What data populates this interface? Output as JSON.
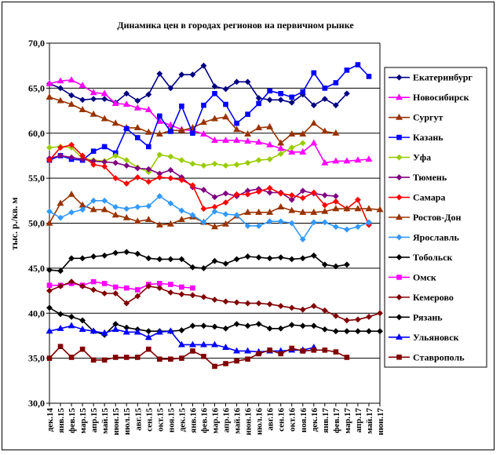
{
  "chart_data": {
    "type": "line",
    "title": "Динамика цен в городах регионов на первичном рынке",
    "ylabel": "тыс. р./кв. м",
    "xlabel": "",
    "ylim": [
      30,
      70
    ],
    "yticks": [
      "30,0",
      "35,0",
      "40,0",
      "45,0",
      "50,0",
      "55,0",
      "60,0",
      "65,0",
      "70,0"
    ],
    "grid": "horizontal",
    "legend": "right",
    "categories": [
      "дек.14",
      "янв.15",
      "фев.15",
      "мар.15",
      "апр.15",
      "май.15",
      "июн.15",
      "июл.15",
      "авг.15",
      "сен.15",
      "окт.15",
      "ноя.15",
      "дек.15",
      "янв.16",
      "фев.16",
      "мар.16",
      "апр.16",
      "май.16",
      "июн.16",
      "июл.16",
      "авг.16",
      "сен.16",
      "окт.16",
      "ноя.16",
      "дек.16",
      "янв.17",
      "фев.17",
      "мар.17",
      "апр.17",
      "май.17",
      "июн.17"
    ],
    "xticks_shown": [
      "дек.14",
      "янв.15",
      "фев.15",
      "мар.15",
      "апр.15",
      "май.15",
      "июн.15",
      "июл.15",
      "авг.15",
      "сен.15",
      "окт.15",
      "ноя.15",
      "дек.15",
      "янв.16",
      "фев.16",
      "мар.16",
      "апр.16",
      "май.16",
      "июн.16",
      "июл.16",
      "авг.16",
      "сен.16",
      "окт.16",
      "ноя.16",
      "дек.16",
      "янв.17",
      "фев.17",
      "мар.17",
      "апр.17",
      "май.17",
      "июн.17"
    ],
    "series": [
      {
        "name": "Екатеринбург",
        "color": "#000080",
        "marker": "diamond",
        "values": [
          65.5,
          65.0,
          64.2,
          63.7,
          63.8,
          63.8,
          63.4,
          64.4,
          63.6,
          64.3,
          66.6,
          65.0,
          66.5,
          66.5,
          67.5,
          65.2,
          64.9,
          65.7,
          65.7,
          63.9,
          63.7,
          63.7,
          63.4,
          64.3,
          63.1,
          63.8,
          63.1,
          64.4,
          null,
          null,
          null
        ]
      },
      {
        "name": "Новосибирск",
        "color": "#FF00FF",
        "marker": "triangle",
        "values": [
          65.5,
          65.8,
          65.9,
          65.3,
          64.5,
          64.4,
          63.3,
          63.2,
          62.8,
          62.6,
          61.3,
          60.9,
          60.4,
          60.3,
          59.9,
          59.2,
          59.2,
          59.2,
          59.1,
          59.0,
          58.7,
          58.3,
          57.9,
          57.9,
          58.9,
          56.7,
          56.9,
          56.9,
          57.0,
          57.1,
          null
        ]
      },
      {
        "name": "Сургут",
        "color": "#993300",
        "marker": "triangle",
        "values": [
          64.0,
          63.6,
          63.2,
          62.6,
          62.1,
          61.6,
          61.1,
          60.6,
          60.6,
          60.1,
          59.9,
          60.3,
          60.3,
          60.6,
          61.2,
          61.6,
          61.8,
          60.4,
          59.9,
          60.6,
          60.7,
          58.9,
          59.9,
          59.9,
          61.1,
          60.2,
          60.0,
          null,
          null,
          null,
          null
        ]
      },
      {
        "name": "Казань",
        "color": "#0000FF",
        "marker": "square",
        "values": [
          57.0,
          57.5,
          57.1,
          57.0,
          58.0,
          58.5,
          57.8,
          60.5,
          59.5,
          58.5,
          61.9,
          60.2,
          63.0,
          60.0,
          63.1,
          64.4,
          63.2,
          61.1,
          62.1,
          63.3,
          64.7,
          64.4,
          64.0,
          64.6,
          66.7,
          65.0,
          65.6,
          67.0,
          67.6,
          66.3,
          null
        ]
      },
      {
        "name": "Уфа",
        "color": "#99CC00",
        "marker": "diamond",
        "values": [
          58.4,
          58.5,
          58.4,
          57.2,
          57.0,
          56.9,
          57.5,
          57.0,
          56.2,
          55.7,
          57.6,
          57.4,
          57.0,
          56.6,
          56.4,
          56.6,
          56.4,
          56.5,
          56.7,
          57.0,
          57.1,
          57.7,
          58.4,
          58.9,
          null,
          null,
          null,
          null,
          null,
          null,
          null
        ]
      },
      {
        "name": "Тюмень",
        "color": "#800080",
        "marker": "diamond",
        "values": [
          57.2,
          57.5,
          57.3,
          57.1,
          56.9,
          56.8,
          56.7,
          56.4,
          56.1,
          56.0,
          55.5,
          55.9,
          55.1,
          54.0,
          53.7,
          52.9,
          53.3,
          53.0,
          53.6,
          53.8,
          53.4,
          53.4,
          52.6,
          53.6,
          53.3,
          53.1,
          53.0,
          null,
          null,
          null,
          null
        ]
      },
      {
        "name": "Самара",
        "color": "#FF0000",
        "marker": "diamond",
        "values": [
          57.0,
          58.4,
          58.7,
          57.5,
          56.5,
          56.3,
          55.0,
          54.4,
          55.1,
          54.6,
          55.1,
          55.0,
          54.8,
          54.2,
          51.6,
          51.8,
          52.3,
          53.2,
          53.2,
          53.5,
          53.9,
          53.3,
          53.1,
          52.8,
          53.4,
          52.0,
          52.4,
          51.6,
          52.6,
          49.8,
          null
        ]
      },
      {
        "name": "Ростов-Дон",
        "color": "#993300",
        "marker": "triangle",
        "values": [
          50.0,
          52.2,
          53.2,
          52.0,
          51.5,
          51.5,
          50.9,
          50.6,
          50.2,
          50.4,
          49.8,
          49.9,
          50.4,
          50.7,
          50.1,
          49.6,
          49.9,
          50.8,
          51.2,
          51.2,
          51.2,
          51.8,
          51.4,
          51.2,
          51.2,
          51.3,
          51.6,
          51.6,
          51.6,
          51.6,
          51.5
        ]
      },
      {
        "name": "Ярославль",
        "color": "#3399FF",
        "marker": "diamond",
        "values": [
          51.3,
          50.6,
          51.2,
          51.5,
          52.5,
          52.5,
          51.8,
          51.6,
          51.8,
          51.9,
          53.0,
          52.2,
          51.4,
          50.9,
          50.1,
          51.3,
          51.0,
          50.9,
          49.7,
          49.7,
          50.2,
          50.2,
          50.0,
          48.2,
          50.1,
          50.1,
          49.6,
          49.3,
          49.6,
          50.1,
          null
        ]
      },
      {
        "name": "Тобольск",
        "color": "#000000",
        "marker": "diamond",
        "values": [
          44.8,
          44.7,
          46.1,
          46.1,
          46.3,
          46.4,
          46.7,
          46.8,
          46.6,
          46.1,
          46.0,
          46.0,
          46.0,
          45.1,
          45.0,
          45.8,
          45.5,
          46.0,
          46.3,
          46.2,
          46.1,
          46.2,
          46.0,
          46.1,
          46.4,
          45.4,
          45.2,
          45.4,
          null,
          null,
          null
        ]
      },
      {
        "name": "Омск",
        "color": "#FF00FF",
        "marker": "square",
        "values": [
          43.1,
          43.1,
          43.3,
          43.1,
          43.5,
          43.3,
          42.9,
          42.8,
          42.6,
          43.2,
          43.3,
          43.2,
          42.9,
          42.8,
          null,
          null,
          null,
          null,
          null,
          null,
          null,
          null,
          null,
          null,
          null,
          null,
          null,
          null,
          null,
          null,
          null
        ]
      },
      {
        "name": "Кемерово",
        "color": "#800000",
        "marker": "diamond",
        "values": [
          42.5,
          43.0,
          43.5,
          43.0,
          42.6,
          42.2,
          42.2,
          41.1,
          41.9,
          43.0,
          42.8,
          42.3,
          42.1,
          42.0,
          41.8,
          41.5,
          41.3,
          41.2,
          41.1,
          41.1,
          41.0,
          40.8,
          40.6,
          40.4,
          40.8,
          40.3,
          39.7,
          39.2,
          39.3,
          39.6,
          40.0
        ]
      },
      {
        "name": "Рязань",
        "color": "#000000",
        "marker": "diamond",
        "values": [
          40.6,
          39.9,
          39.6,
          39.2,
          38.0,
          37.6,
          38.8,
          38.4,
          38.2,
          38.0,
          38.0,
          38.0,
          38.1,
          38.6,
          38.6,
          38.5,
          38.3,
          38.8,
          38.6,
          38.8,
          38.3,
          38.3,
          38.7,
          38.6,
          38.6,
          38.2,
          38.0,
          38.0,
          38.0,
          38.0,
          38.0
        ]
      },
      {
        "name": "Ульяновск",
        "color": "#0000FF",
        "marker": "triangle",
        "values": [
          38.0,
          38.3,
          38.6,
          38.2,
          38.0,
          37.8,
          38.2,
          37.9,
          37.9,
          37.3,
          37.9,
          38.0,
          36.5,
          36.5,
          36.5,
          36.5,
          36.2,
          35.8,
          35.8,
          35.7,
          35.8,
          35.8,
          35.9,
          35.9,
          36.2,
          null,
          null,
          null,
          null,
          null,
          null
        ]
      },
      {
        "name": "Ставрополь",
        "color": "#800000",
        "marker": "square",
        "values": [
          35.0,
          36.3,
          35.1,
          36.0,
          34.8,
          34.8,
          35.1,
          35.1,
          35.1,
          36.0,
          34.9,
          34.9,
          35.0,
          35.8,
          35.2,
          34.1,
          34.4,
          34.7,
          34.9,
          35.5,
          35.9,
          35.5,
          36.1,
          35.8,
          35.9,
          35.9,
          35.7,
          35.1,
          null,
          null,
          null
        ]
      }
    ]
  }
}
